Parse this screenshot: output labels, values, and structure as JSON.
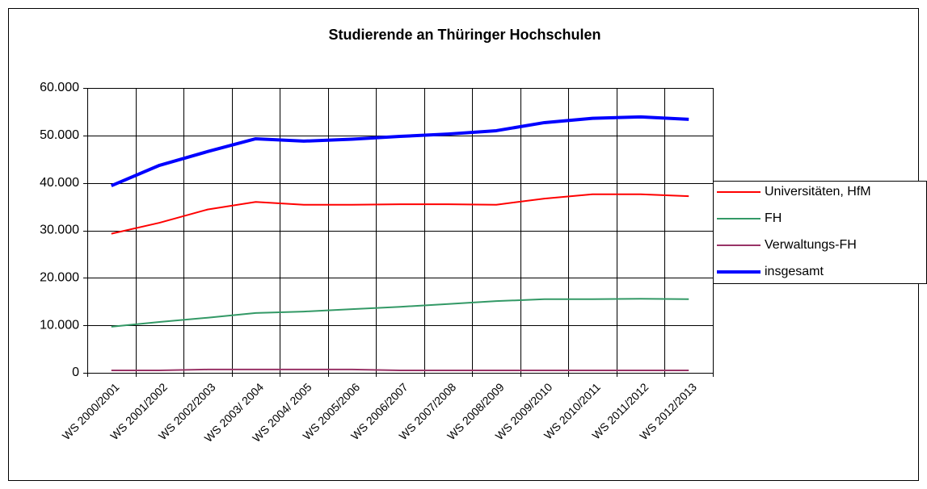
{
  "chart_data": {
    "type": "line",
    "title": "Studierende an Thüringer Hochschulen",
    "categories": [
      "WS 2000/2001",
      "WS 2001/2002",
      "WS 2002/2003",
      "WS 2003/ 2004",
      "WS 2004/ 2005",
      "WS 2005/2006",
      "WS 2006/2007",
      "WS 2007/2008",
      "WS 2008/2009",
      "WS 2009/2010",
      "WS 2010/2011",
      "WS 2011/2012",
      "WS 2012/2013"
    ],
    "series": [
      {
        "name": "Universitäten, HfM",
        "color": "#ff0000",
        "width": 2,
        "values": [
          29300,
          31600,
          34400,
          36000,
          35400,
          35400,
          35500,
          35500,
          35400,
          36700,
          37600,
          37600,
          37200
        ]
      },
      {
        "name": "FH",
        "color": "#339966",
        "width": 2,
        "values": [
          9700,
          10700,
          11600,
          12600,
          12900,
          13400,
          13900,
          14500,
          15100,
          15500,
          15500,
          15600,
          15500
        ]
      },
      {
        "name": "Verwaltungs-FH",
        "color": "#993366",
        "width": 2,
        "values": [
          500,
          500,
          700,
          700,
          700,
          700,
          500,
          500,
          500,
          500,
          500,
          500,
          500
        ]
      },
      {
        "name": "insgesamt",
        "color": "#0000ff",
        "width": 4,
        "values": [
          39400,
          43700,
          46600,
          49300,
          48800,
          49200,
          49800,
          50300,
          51000,
          52700,
          53600,
          53900,
          53400
        ]
      }
    ],
    "ylim": [
      0,
      60000
    ],
    "yticks": [
      0,
      {
        "value": 10000,
        "label": "10.000"
      },
      {
        "value": 20000,
        "label": "20.000"
      },
      {
        "value": 30000,
        "label": "30.000"
      },
      {
        "value": 40000,
        "label": "40.000"
      },
      {
        "value": 50000,
        "label": "50.000"
      },
      {
        "value": 60000,
        "label": "60.000"
      }
    ],
    "grid": true,
    "legend": "right"
  }
}
